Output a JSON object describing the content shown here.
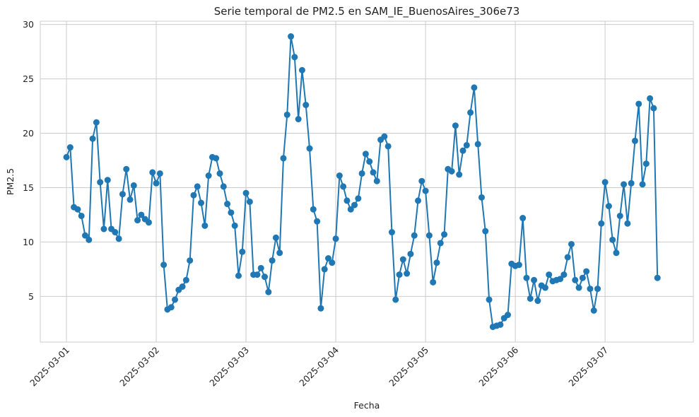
{
  "chart_data": {
    "type": "line",
    "title": "Serie temporal de PM2.5 en SAM_IE_BuenosAires_306e73",
    "xlabel": "Fecha",
    "ylabel": "PM2.5",
    "x_start": "2025-03-01 00:00",
    "x_step_hours": 1,
    "x_ticks": [
      "2025-03-01",
      "2025-03-02",
      "2025-03-03",
      "2025-03-04",
      "2025-03-05",
      "2025-03-06",
      "2025-03-07"
    ],
    "ylim": [
      0.8,
      30.3
    ],
    "y_ticks": [
      5,
      10,
      15,
      20,
      25,
      30
    ],
    "xlim": [
      "2025-02-28 17:00",
      "2025-03-07 23:36"
    ],
    "grid": true,
    "line_color": "#1f77b4",
    "marker": "circle",
    "series": [
      {
        "values": [
          17.8,
          18.7,
          13.2,
          13.0,
          12.4,
          10.6,
          10.2,
          19.5,
          21.0,
          15.5,
          11.2,
          15.7,
          11.2,
          10.9,
          10.3,
          14.4,
          16.7,
          13.9,
          15.2,
          12.0,
          12.5,
          12.1,
          11.8,
          16.4,
          15.4,
          16.3,
          7.9,
          3.8,
          4.0,
          4.7,
          5.6,
          5.9,
          6.5,
          8.3,
          14.3,
          15.1,
          13.6,
          11.5,
          16.1,
          17.8,
          17.7,
          16.3,
          15.1,
          13.5,
          12.7,
          11.5,
          6.9,
          9.1,
          14.5,
          13.7,
          7.0,
          7.0,
          7.6,
          6.8,
          5.4,
          8.3,
          10.4,
          9.0,
          17.7,
          21.7,
          28.9,
          27.0,
          21.3,
          25.8,
          22.6,
          18.6,
          13.0,
          11.9,
          3.9,
          7.5,
          8.5,
          8.1,
          10.3,
          16.1,
          15.1,
          13.8,
          13.0,
          13.4,
          14.0,
          16.3,
          18.1,
          17.4,
          16.4,
          15.6,
          19.4,
          19.7,
          18.8,
          10.9,
          4.7,
          7.0,
          8.4,
          7.1,
          8.9,
          10.6,
          13.8,
          15.6,
          14.7,
          10.6,
          6.3,
          8.1,
          9.9,
          10.7,
          16.7,
          16.5,
          20.7,
          16.2,
          18.4,
          18.9,
          21.9,
          24.2,
          19.0,
          14.1,
          11.0,
          4.7,
          2.2,
          2.3,
          2.4,
          3.0,
          3.3,
          8.0,
          7.8,
          7.9,
          12.2,
          6.7,
          4.8,
          6.5,
          4.6,
          6.0,
          5.8,
          7.0,
          6.4,
          6.5,
          6.6,
          7.0,
          8.6,
          9.8,
          6.5,
          5.8,
          6.7,
          7.3,
          5.7,
          3.7,
          5.7,
          11.7,
          15.5,
          13.3,
          10.2,
          9.0,
          12.4,
          15.3,
          11.7,
          15.4,
          19.3,
          22.7,
          15.3,
          17.2,
          23.2,
          22.3,
          6.7
        ]
      }
    ]
  }
}
